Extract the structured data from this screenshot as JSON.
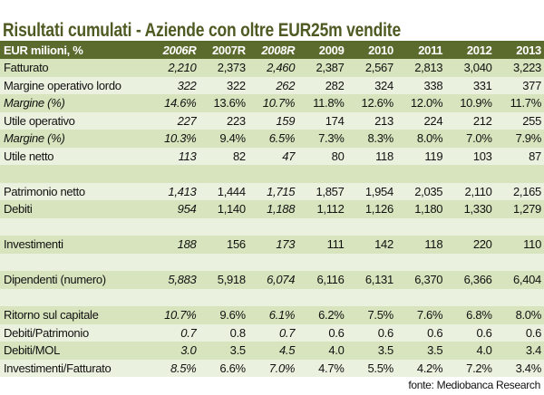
{
  "title": "Risultati cumulati - Aziende con oltre EUR25m vendite",
  "header": {
    "label": "EUR milioni, %",
    "years": [
      "2006R",
      "2007R",
      "2008R",
      "2009",
      "2010",
      "2011",
      "2012",
      "2013"
    ],
    "italic_columns": [
      0,
      2
    ]
  },
  "rows": [
    {
      "label": "Fatturato",
      "italic": false,
      "values": [
        "2,210",
        "2,373",
        "2,460",
        "2,387",
        "2,567",
        "2,813",
        "3,040",
        "3,223"
      ]
    },
    {
      "label": "Margine operativo lordo",
      "italic": false,
      "values": [
        "322",
        "322",
        "262",
        "282",
        "324",
        "338",
        "331",
        "377"
      ]
    },
    {
      "label": "Margine (%)",
      "italic": true,
      "values": [
        "14.6%",
        "13.6%",
        "10.7%",
        "11.8%",
        "12.6%",
        "12.0%",
        "10.9%",
        "11.7%"
      ]
    },
    {
      "label": "Utile operativo",
      "italic": false,
      "values": [
        "227",
        "223",
        "159",
        "174",
        "213",
        "224",
        "212",
        "255"
      ]
    },
    {
      "label": "Margine (%)",
      "italic": true,
      "values": [
        "10.3%",
        "9.4%",
        "6.5%",
        "7.3%",
        "8.3%",
        "8.0%",
        "7.0%",
        "7.9%"
      ]
    },
    {
      "label": "Utile netto",
      "italic": false,
      "values": [
        "113",
        "82",
        "47",
        "80",
        "118",
        "119",
        "103",
        "87"
      ]
    },
    {
      "label": "",
      "italic": false,
      "values": [
        "",
        "",
        "",
        "",
        "",
        "",
        "",
        ""
      ]
    },
    {
      "label": "Patrimonio netto",
      "italic": false,
      "values": [
        "1,413",
        "1,444",
        "1,715",
        "1,857",
        "1,954",
        "2,035",
        "2,110",
        "2,165"
      ]
    },
    {
      "label": "Debiti",
      "italic": false,
      "values": [
        "954",
        "1,140",
        "1,188",
        "1,112",
        "1,126",
        "1,180",
        "1,330",
        "1,279"
      ]
    },
    {
      "label": "",
      "italic": false,
      "values": [
        "",
        "",
        "",
        "",
        "",
        "",
        "",
        ""
      ]
    },
    {
      "label": "Investimenti",
      "italic": false,
      "values": [
        "188",
        "156",
        "173",
        "111",
        "142",
        "118",
        "220",
        "110"
      ]
    },
    {
      "label": "",
      "italic": false,
      "values": [
        "",
        "",
        "",
        "",
        "",
        "",
        "",
        ""
      ]
    },
    {
      "label": "Dipendenti (numero)",
      "italic": false,
      "values": [
        "5,883",
        "5,918",
        "6,074",
        "6,116",
        "6,131",
        "6,370",
        "6,366",
        "6,404"
      ]
    },
    {
      "label": "",
      "italic": false,
      "values": [
        "",
        "",
        "",
        "",
        "",
        "",
        "",
        ""
      ]
    },
    {
      "label": "Ritorno sul capitale",
      "italic": false,
      "values": [
        "10.7%",
        "9.6%",
        "6.1%",
        "6.2%",
        "7.5%",
        "7.6%",
        "6.8%",
        "8.0%"
      ]
    },
    {
      "label": "Debiti/Patrimonio",
      "italic": false,
      "values": [
        "0.7",
        "0.8",
        "0.7",
        "0.6",
        "0.6",
        "0.6",
        "0.6",
        "0.6"
      ]
    },
    {
      "label": "Debiti/MOL",
      "italic": false,
      "values": [
        "3.0",
        "3.5",
        "4.5",
        "4.0",
        "3.5",
        "3.5",
        "4.0",
        "3.4"
      ]
    },
    {
      "label": "Investimenti/Fatturato",
      "italic": false,
      "values": [
        "8.5%",
        "6.6%",
        "7.0%",
        "4.7%",
        "5.5%",
        "4.2%",
        "7.2%",
        "3.4%"
      ]
    }
  ],
  "footer": "fonte: Mediobanca Research",
  "colors": {
    "header_bg": "#5b6b2e",
    "title": "#4f5a22",
    "row_dark": "#d7e4bd",
    "row_light": "#ebf1df"
  }
}
